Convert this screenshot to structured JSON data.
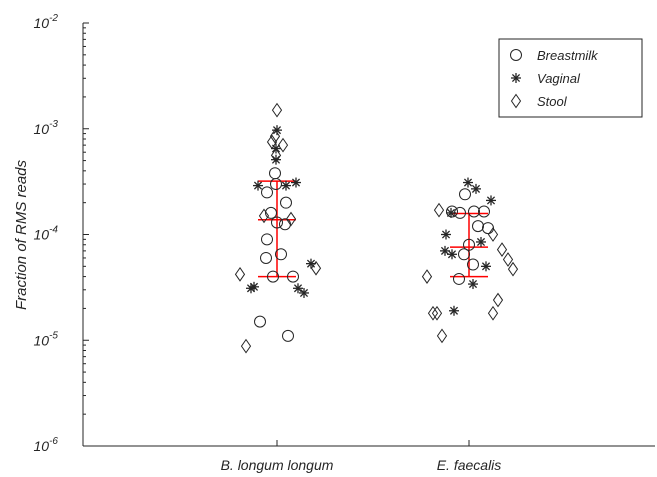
{
  "chart_data": {
    "type": "scatter",
    "title": "",
    "xlabel": "",
    "ylabel": "Fraction of RMS reads",
    "yscale": "log",
    "ylim": [
      1e-06,
      0.01
    ],
    "y_tick_labels": [
      {
        "base": "10",
        "exp": "-6"
      },
      {
        "base": "10",
        "exp": "-5"
      },
      {
        "base": "10",
        "exp": "-4"
      },
      {
        "base": "10",
        "exp": "-3"
      },
      {
        "base": "10",
        "exp": "-2"
      }
    ],
    "categories": [
      "B. longum longum",
      "E. faecalis"
    ],
    "legend": {
      "position": "top-right",
      "entries": [
        "Breastmilk",
        "Vaginal",
        "Stool"
      ]
    },
    "colors": {
      "points": "#262626",
      "error_bars": "#ff0000",
      "axes": "#262626"
    },
    "series": [
      {
        "name": "Breastmilk",
        "marker": "circle",
        "points": [
          {
            "category": "B. longum longum",
            "offset": -0.02,
            "y": 0.00038
          },
          {
            "category": "B. longum longum",
            "offset": -0.01,
            "y": 0.0003
          },
          {
            "category": "B. longum longum",
            "offset": -0.1,
            "y": 0.00025
          },
          {
            "category": "B. longum longum",
            "offset": 0.09,
            "y": 0.0002
          },
          {
            "category": "B. longum longum",
            "offset": -0.06,
            "y": 0.00016
          },
          {
            "category": "B. longum longum",
            "offset": 0.0,
            "y": 0.00013
          },
          {
            "category": "B. longum longum",
            "offset": 0.08,
            "y": 0.000125
          },
          {
            "category": "B. longum longum",
            "offset": -0.1,
            "y": 9e-05
          },
          {
            "category": "B. longum longum",
            "offset": 0.04,
            "y": 6.5e-05
          },
          {
            "category": "B. longum longum",
            "offset": -0.11,
            "y": 6e-05
          },
          {
            "category": "B. longum longum",
            "offset": -0.04,
            "y": 4e-05
          },
          {
            "category": "B. longum longum",
            "offset": 0.16,
            "y": 4e-05
          },
          {
            "category": "B. longum longum",
            "offset": -0.17,
            "y": 1.5e-05
          },
          {
            "category": "B. longum longum",
            "offset": 0.11,
            "y": 1.1e-05
          },
          {
            "category": "E. faecalis",
            "offset": -0.04,
            "y": 0.00024
          },
          {
            "category": "E. faecalis",
            "offset": -0.17,
            "y": 0.000165
          },
          {
            "category": "E. faecalis",
            "offset": -0.09,
            "y": 0.00016
          },
          {
            "category": "E. faecalis",
            "offset": 0.05,
            "y": 0.000165
          },
          {
            "category": "E. faecalis",
            "offset": 0.15,
            "y": 0.000165
          },
          {
            "category": "E. faecalis",
            "offset": 0.09,
            "y": 0.00012
          },
          {
            "category": "E. faecalis",
            "offset": 0.19,
            "y": 0.000115
          },
          {
            "category": "E. faecalis",
            "offset": 0.0,
            "y": 8e-05
          },
          {
            "category": "E. faecalis",
            "offset": -0.05,
            "y": 6.5e-05
          },
          {
            "category": "E. faecalis",
            "offset": 0.04,
            "y": 5.2e-05
          },
          {
            "category": "E. faecalis",
            "offset": -0.1,
            "y": 3.8e-05
          }
        ]
      },
      {
        "name": "Vaginal",
        "marker": "asterisk",
        "points": [
          {
            "category": "B. longum longum",
            "offset": 0.0,
            "y": 0.00097
          },
          {
            "category": "B. longum longum",
            "offset": -0.01,
            "y": 0.00065
          },
          {
            "category": "B. longum longum",
            "offset": -0.01,
            "y": 0.00051
          },
          {
            "category": "B. longum longum",
            "offset": -0.19,
            "y": 0.00029
          },
          {
            "category": "B. longum longum",
            "offset": 0.09,
            "y": 0.00029
          },
          {
            "category": "B. longum longum",
            "offset": 0.19,
            "y": 0.00031
          },
          {
            "category": "B. longum longum",
            "offset": 0.34,
            "y": 5.3e-05
          },
          {
            "category": "B. longum longum",
            "offset": -0.26,
            "y": 3.1e-05
          },
          {
            "category": "B. longum longum",
            "offset": -0.23,
            "y": 3.2e-05
          },
          {
            "category": "B. longum longum",
            "offset": 0.21,
            "y": 3.1e-05
          },
          {
            "category": "B. longum longum",
            "offset": 0.27,
            "y": 2.8e-05
          },
          {
            "category": "E. faecalis",
            "offset": -0.01,
            "y": 0.00031
          },
          {
            "category": "E. faecalis",
            "offset": 0.07,
            "y": 0.00027
          },
          {
            "category": "E. faecalis",
            "offset": 0.22,
            "y": 0.00021
          },
          {
            "category": "E. faecalis",
            "offset": -0.18,
            "y": 0.00016
          },
          {
            "category": "E. faecalis",
            "offset": -0.23,
            "y": 0.0001
          },
          {
            "category": "E. faecalis",
            "offset": 0.12,
            "y": 8.5e-05
          },
          {
            "category": "E. faecalis",
            "offset": -0.24,
            "y": 7e-05
          },
          {
            "category": "E. faecalis",
            "offset": -0.17,
            "y": 6.5e-05
          },
          {
            "category": "E. faecalis",
            "offset": 0.17,
            "y": 5e-05
          },
          {
            "category": "E. faecalis",
            "offset": 0.04,
            "y": 3.4e-05
          },
          {
            "category": "E. faecalis",
            "offset": -0.15,
            "y": 1.9e-05
          }
        ]
      },
      {
        "name": "Stool",
        "marker": "diamond",
        "points": [
          {
            "category": "B. longum longum",
            "offset": 0.0,
            "y": 0.0015
          },
          {
            "category": "B. longum longum",
            "offset": -0.05,
            "y": 0.00075
          },
          {
            "category": "B. longum longum",
            "offset": -0.02,
            "y": 0.00085
          },
          {
            "category": "B. longum longum",
            "offset": 0.06,
            "y": 0.0007
          },
          {
            "category": "B. longum longum",
            "offset": -0.01,
            "y": 0.00056
          },
          {
            "category": "B. longum longum",
            "offset": -0.13,
            "y": 0.00015
          },
          {
            "category": "B. longum longum",
            "offset": 0.14,
            "y": 0.00014
          },
          {
            "category": "B. longum longum",
            "offset": -0.37,
            "y": 4.2e-05
          },
          {
            "category": "B. longum longum",
            "offset": 0.39,
            "y": 4.8e-05
          },
          {
            "category": "B. longum longum",
            "offset": -0.31,
            "y": 8.8e-06
          },
          {
            "category": "E. faecalis",
            "offset": -0.3,
            "y": 0.00017
          },
          {
            "category": "E. faecalis",
            "offset": 0.24,
            "y": 0.0001
          },
          {
            "category": "E. faecalis",
            "offset": 0.33,
            "y": 7.2e-05
          },
          {
            "category": "E. faecalis",
            "offset": 0.39,
            "y": 5.8e-05
          },
          {
            "category": "E. faecalis",
            "offset": 0.44,
            "y": 4.7e-05
          },
          {
            "category": "E. faecalis",
            "offset": -0.42,
            "y": 4e-05
          },
          {
            "category": "E. faecalis",
            "offset": 0.29,
            "y": 2.4e-05
          },
          {
            "category": "E. faecalis",
            "offset": 0.24,
            "y": 1.8e-05
          },
          {
            "category": "E. faecalis",
            "offset": -0.36,
            "y": 1.8e-05
          },
          {
            "category": "E. faecalis",
            "offset": -0.32,
            "y": 1.8e-05
          },
          {
            "category": "E. faecalis",
            "offset": -0.27,
            "y": 1.1e-05
          }
        ]
      }
    ],
    "error_bars": [
      {
        "category": "B. longum longum",
        "center": 0.000138,
        "low": 4e-05,
        "high": 0.00032
      },
      {
        "category": "E. faecalis",
        "center": 7.6e-05,
        "low": 4e-05,
        "high": 0.000158
      }
    ]
  }
}
